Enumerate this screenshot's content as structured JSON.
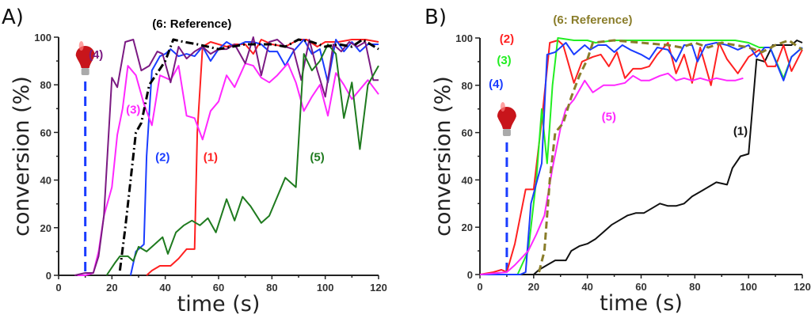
{
  "chart_data": [
    {
      "type": "line",
      "panel_label": "A)",
      "xlabel": "time (s)",
      "ylabel": "conversion (%)",
      "xlim": [
        0,
        120
      ],
      "ylim": [
        0,
        100
      ],
      "xticks": [
        "0",
        "20",
        "40",
        "60",
        "80",
        "100",
        "120"
      ],
      "yticks": [
        "0",
        "20",
        "40",
        "60",
        "80",
        "100"
      ],
      "light_on_time": 10,
      "series": [
        {
          "name": "(1)",
          "color": "#ff2020",
          "dash": "",
          "label_at": [
            57,
            48
          ],
          "x": [
            33,
            35,
            38,
            42,
            45,
            48,
            51,
            52,
            54,
            57,
            60,
            63,
            66,
            70,
            73,
            76,
            80,
            85,
            90,
            93,
            97,
            100,
            105,
            110,
            115,
            120
          ],
          "y": [
            0,
            2,
            4,
            4,
            7,
            11,
            11,
            60,
            96,
            98,
            97,
            96,
            97,
            97,
            93,
            99,
            97,
            96,
            99,
            99,
            96,
            98,
            98,
            99,
            99,
            98
          ]
        },
        {
          "name": "(2)",
          "color": "#1a3cff",
          "dash": "",
          "label_at": [
            39,
            48
          ],
          "x": [
            27,
            29,
            32,
            33,
            35,
            38,
            40,
            42,
            45,
            48,
            51,
            54,
            57,
            60,
            63,
            66,
            70,
            73,
            76,
            79,
            82,
            85,
            88,
            92,
            95,
            98,
            101,
            104,
            107,
            110,
            113,
            116,
            120
          ],
          "y": [
            0,
            10,
            13,
            50,
            86,
            92,
            93,
            95,
            92,
            93,
            92,
            96,
            90,
            95,
            98,
            96,
            98,
            98,
            97,
            94,
            94,
            88,
            94,
            99,
            93,
            95,
            81,
            99,
            94,
            98,
            94,
            97,
            97
          ]
        },
        {
          "name": "(3)",
          "color": "#ff28ff",
          "dash": "",
          "label_at": [
            28,
            68
          ],
          "x": [
            7,
            10,
            13,
            15,
            17,
            20,
            22,
            24,
            26,
            29,
            32,
            35,
            38,
            40,
            42,
            45,
            48,
            51,
            54,
            57,
            60,
            63,
            66,
            70,
            73,
            76,
            79,
            82,
            86,
            89,
            92,
            95,
            98,
            101,
            104,
            107,
            110,
            113,
            116,
            120
          ],
          "y": [
            0,
            0,
            1,
            10,
            25,
            37,
            59,
            70,
            88,
            84,
            72,
            63,
            84,
            83,
            82,
            88,
            67,
            66,
            57,
            69,
            73,
            84,
            79,
            89,
            88,
            83,
            81,
            84,
            89,
            81,
            69,
            75,
            80,
            67,
            85,
            80,
            74,
            78,
            82,
            76
          ]
        },
        {
          "name": "(4)",
          "color": "#7b1a82",
          "dash": "",
          "label_at": [
            14,
            91
          ],
          "x": [
            6,
            10,
            13,
            15,
            17,
            20,
            22,
            25,
            28,
            31,
            34,
            37,
            39,
            42,
            45,
            48,
            51,
            54,
            57,
            60,
            63,
            66,
            70,
            73,
            76,
            79,
            82,
            85,
            88,
            91,
            94,
            97,
            100,
            103,
            106,
            109,
            112,
            115,
            118,
            120
          ],
          "y": [
            0,
            1,
            1,
            8,
            25,
            83,
            79,
            98,
            99,
            86,
            88,
            94,
            93,
            81,
            96,
            91,
            94,
            96,
            93,
            95,
            95,
            97,
            89,
            100,
            84,
            98,
            99,
            96,
            95,
            82,
            99,
            86,
            75,
            97,
            94,
            98,
            96,
            98,
            82,
            82
          ]
        },
        {
          "name": "(5)",
          "color": "#1e7a1e",
          "dash": "",
          "label_at": [
            97,
            48
          ],
          "x": [
            18,
            21,
            23,
            26,
            28,
            30,
            33,
            36,
            39,
            41,
            44,
            47,
            50,
            53,
            56,
            59,
            63,
            66,
            69,
            72,
            76,
            79,
            82,
            85,
            89,
            92,
            95,
            98,
            101,
            104,
            107,
            110,
            113,
            116,
            120
          ],
          "y": [
            0,
            5,
            8,
            8,
            6,
            12,
            10,
            13,
            16,
            9,
            18,
            21,
            23,
            21,
            24,
            18,
            32,
            23,
            33,
            29,
            22,
            25,
            33,
            41,
            37,
            93,
            86,
            90,
            97,
            93,
            66,
            81,
            53,
            80,
            88
          ]
        },
        {
          "name": "(6: Reference)",
          "color": "#000000",
          "dash": "10 4 2 4",
          "label_at": [
            50,
            104
          ],
          "x": [
            23,
            25,
            27,
            29,
            31,
            34,
            37,
            40,
            43,
            47,
            52,
            60,
            70,
            80,
            85,
            90,
            95,
            100,
            105,
            110,
            114,
            120
          ],
          "y": [
            2,
            20,
            40,
            60,
            64,
            80,
            85,
            90,
            99,
            98,
            97,
            95,
            97,
            97,
            96,
            99,
            98,
            96,
            97,
            96,
            99,
            95
          ]
        }
      ]
    },
    {
      "type": "line",
      "panel_label": "B)",
      "xlabel": "time (s)",
      "ylabel": "conversion (%)",
      "xlim": [
        0,
        120
      ],
      "ylim": [
        0,
        100
      ],
      "xticks": [
        "0",
        "20",
        "40",
        "60",
        "80",
        "100",
        "120"
      ],
      "yticks": [
        "0",
        "20",
        "40",
        "60",
        "80",
        "100"
      ],
      "light_on_time": 10,
      "series": [
        {
          "name": "(1)",
          "color": "#111111",
          "dash": "",
          "label_at": [
            97,
            59
          ],
          "x": [
            0,
            20,
            22,
            25,
            28,
            32,
            34,
            37,
            40,
            43,
            46,
            49,
            52,
            55,
            58,
            61,
            64,
            67,
            70,
            73,
            76,
            79,
            82,
            85,
            88,
            92,
            94,
            97,
            100,
            103,
            106,
            109,
            112,
            116,
            118,
            120
          ],
          "y": [
            0,
            0,
            2,
            4,
            6,
            6,
            10,
            12,
            13,
            15,
            18,
            21,
            23,
            25,
            26,
            26,
            28,
            30,
            29,
            29,
            30,
            33,
            35,
            37,
            39,
            38,
            45,
            50,
            51,
            91,
            90,
            97,
            97,
            97,
            99,
            98
          ]
        },
        {
          "name": "(2)",
          "color": "#ff2020",
          "dash": "",
          "label_at": [
            10,
            98
          ],
          "x": [
            0,
            5,
            8,
            10,
            13,
            17,
            20,
            23,
            26,
            29,
            31,
            35,
            38,
            42,
            45,
            48,
            51,
            54,
            57,
            60,
            63,
            66,
            70,
            73,
            76,
            79,
            82,
            86,
            89,
            92,
            96,
            100,
            104,
            107,
            110,
            113,
            116,
            120
          ],
          "y": [
            0,
            1,
            2,
            1,
            13,
            36,
            36,
            65,
            98,
            99,
            97,
            81,
            90,
            92,
            93,
            88,
            94,
            83,
            87,
            87,
            88,
            93,
            98,
            85,
            93,
            81,
            96,
            80,
            98,
            91,
            85,
            92,
            95,
            88,
            88,
            97,
            86,
            95
          ]
        },
        {
          "name": "(3)",
          "color": "#22ee22",
          "dash": "",
          "label_at": [
            9,
            89
          ],
          "x": [
            0,
            14,
            18,
            21,
            23,
            25,
            27,
            29,
            35,
            40,
            43,
            50,
            60,
            70,
            80,
            85,
            90,
            95,
            100,
            104,
            108,
            113,
            116,
            120
          ],
          "y": [
            0,
            0,
            10,
            40,
            70,
            47,
            80,
            100,
            99,
            99,
            98,
            99,
            99,
            99,
            99,
            99,
            99,
            99,
            98,
            96,
            96,
            83,
            92,
            96
          ]
        },
        {
          "name": "(4)",
          "color": "#1a3cff",
          "dash": "",
          "label_at": [
            6,
            79
          ],
          "x": [
            0,
            15,
            17,
            19,
            23,
            25,
            28,
            32,
            35,
            39,
            41,
            44,
            47,
            50,
            53,
            56,
            60,
            63,
            66,
            70,
            73,
            76,
            79,
            81,
            84,
            88,
            92,
            96,
            100,
            103,
            106,
            108,
            113,
            116,
            120
          ],
          "y": [
            0,
            0,
            1,
            30,
            47,
            93,
            94,
            98,
            93,
            97,
            95,
            97,
            97,
            94,
            97,
            95,
            93,
            91,
            96,
            95,
            90,
            97,
            97,
            90,
            97,
            98,
            97,
            95,
            97,
            92,
            96,
            96,
            82,
            92,
            96
          ]
        },
        {
          "name": "(5)",
          "color": "#ff28ff",
          "dash": "",
          "label_at": [
            48,
            65
          ],
          "x": [
            0,
            10,
            13,
            18,
            21,
            24,
            27,
            30,
            32,
            35,
            39,
            42,
            46,
            50,
            54,
            57,
            60,
            63,
            67,
            70,
            73,
            76,
            79,
            82,
            85,
            88,
            92,
            95,
            98
          ],
          "y": [
            0,
            1,
            4,
            10,
            17,
            25,
            45,
            62,
            70,
            74,
            82,
            77,
            80,
            80,
            81,
            84,
            82,
            82,
            84,
            85,
            82,
            83,
            82,
            83,
            82,
            83,
            82,
            82,
            83
          ]
        },
        {
          "name": "(6: Reference)",
          "color": "#8a7d2a",
          "dash": "9 5",
          "label_at": [
            42,
            106
          ],
          "x": [
            22,
            24,
            26,
            28,
            31,
            34,
            37,
            40,
            42,
            50,
            60,
            70,
            75,
            80,
            85,
            90,
            95,
            100,
            105,
            110,
            115,
            120
          ],
          "y": [
            1,
            10,
            40,
            60,
            64,
            75,
            84,
            91,
            98,
            99,
            98,
            97,
            96,
            98,
            96,
            98,
            97,
            96,
            94,
            97,
            99,
            95
          ]
        }
      ]
    }
  ]
}
